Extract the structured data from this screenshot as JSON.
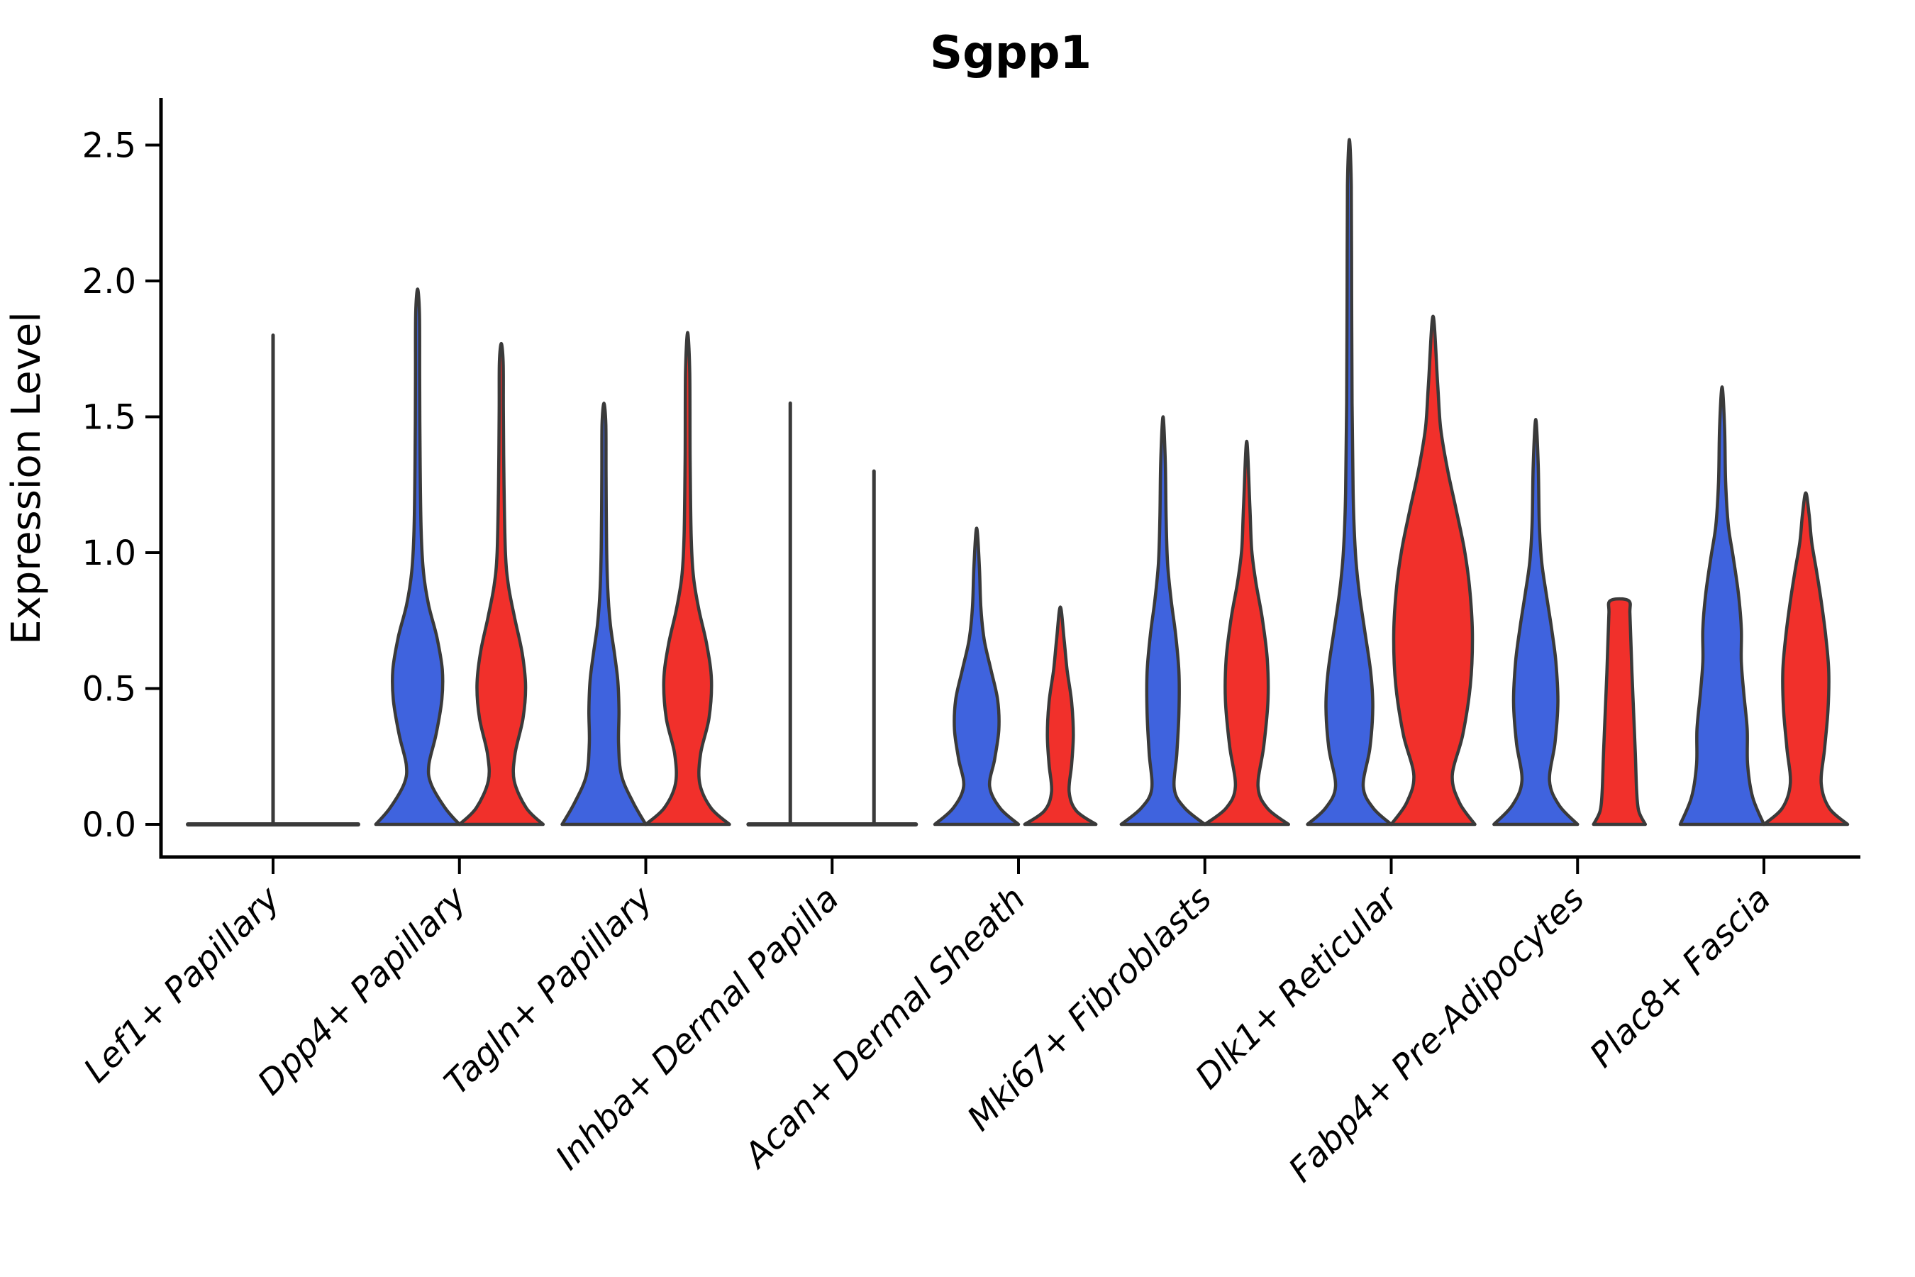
{
  "figure": {
    "title": "Sgpp1",
    "ylabel": "Expression Level"
  },
  "chart_data": {
    "type": "violin",
    "title": "Sgpp1",
    "xlabel": "",
    "ylabel": "Expression Level",
    "ytick_labels": [
      "0.0",
      "0.5",
      "1.0",
      "1.5",
      "2.0",
      "2.5"
    ],
    "ytick_values": [
      0,
      0.5,
      1,
      1.5,
      2,
      2.5
    ],
    "ylim": [
      -0.12,
      2.67
    ],
    "grid": false,
    "legend": null,
    "layout_hint": "paired violins per category: blue on left, red on right; flat-line violins with a vertical whisker spike where density collapses to zero",
    "categories": [
      "Lef1+ Papillary",
      "Dpp4+ Papillary",
      "Tagln+ Papillary",
      "Inhba+ Dermal Papilla",
      "Acan+ Dermal Sheath",
      "Mki67+ Fibroblasts",
      "Dlk1+ Reticular",
      "Fabp4+ Pre-Adipocytes",
      "Plac8+ Fascia"
    ],
    "palette": {
      "blue": "#3F63DE",
      "red": "#F1302B",
      "neutral": "#3A3A3A",
      "outline": "#3A3A3A",
      "axis": "#000000",
      "background": "#FFFFFF"
    },
    "violins": [
      {
        "category": "Lef1+ Papillary",
        "side": "center",
        "color": "neutral",
        "shape": "flat_spike",
        "max": 1.8
      },
      {
        "category": "Dpp4+ Papillary",
        "side": "left",
        "color": "blue",
        "shape": "bulge",
        "max": 1.97,
        "profile": [
          [
            0,
            1.0
          ],
          [
            0.06,
            0.66
          ],
          [
            0.15,
            0.32
          ],
          [
            0.22,
            0.27
          ],
          [
            0.33,
            0.44
          ],
          [
            0.46,
            0.58
          ],
          [
            0.57,
            0.59
          ],
          [
            0.69,
            0.46
          ],
          [
            0.81,
            0.26
          ],
          [
            0.93,
            0.14
          ],
          [
            1.08,
            0.085
          ],
          [
            1.35,
            0.06
          ],
          [
            1.65,
            0.05
          ],
          [
            1.88,
            0.045
          ],
          [
            1.97,
            0
          ]
        ]
      },
      {
        "category": "Dpp4+ Papillary",
        "side": "right",
        "color": "red",
        "shape": "bulge",
        "max": 1.77,
        "profile": [
          [
            0,
            1.0
          ],
          [
            0.06,
            0.6
          ],
          [
            0.16,
            0.31
          ],
          [
            0.26,
            0.33
          ],
          [
            0.39,
            0.52
          ],
          [
            0.51,
            0.58
          ],
          [
            0.63,
            0.5
          ],
          [
            0.76,
            0.32
          ],
          [
            0.88,
            0.17
          ],
          [
            1.0,
            0.1
          ],
          [
            1.25,
            0.065
          ],
          [
            1.52,
            0.05
          ],
          [
            1.7,
            0.045
          ],
          [
            1.77,
            0
          ]
        ]
      },
      {
        "category": "Tagln+ Papillary",
        "side": "left",
        "color": "blue",
        "shape": "bulge",
        "max": 1.55,
        "profile": [
          [
            0,
            1.0
          ],
          [
            0.08,
            0.7
          ],
          [
            0.18,
            0.42
          ],
          [
            0.3,
            0.35
          ],
          [
            0.42,
            0.36
          ],
          [
            0.53,
            0.33
          ],
          [
            0.63,
            0.25
          ],
          [
            0.74,
            0.15
          ],
          [
            0.87,
            0.09
          ],
          [
            1.02,
            0.065
          ],
          [
            1.28,
            0.05
          ],
          [
            1.47,
            0.045
          ],
          [
            1.55,
            0
          ]
        ]
      },
      {
        "category": "Tagln+ Papillary",
        "side": "right",
        "color": "red",
        "shape": "bulge",
        "max": 1.81,
        "profile": [
          [
            0,
            1.0
          ],
          [
            0.06,
            0.56
          ],
          [
            0.15,
            0.29
          ],
          [
            0.26,
            0.31
          ],
          [
            0.39,
            0.51
          ],
          [
            0.53,
            0.57
          ],
          [
            0.66,
            0.46
          ],
          [
            0.79,
            0.27
          ],
          [
            0.91,
            0.14
          ],
          [
            1.06,
            0.085
          ],
          [
            1.35,
            0.06
          ],
          [
            1.66,
            0.05
          ],
          [
            1.81,
            0
          ]
        ]
      },
      {
        "category": "Inhba+ Dermal Papilla",
        "side": "left",
        "color": "blue",
        "shape": "flat_spike",
        "max": 1.55
      },
      {
        "category": "Inhba+ Dermal Papilla",
        "side": "right",
        "color": "red",
        "shape": "flat_spike",
        "max": 1.3
      },
      {
        "category": "Acan+ Dermal Sheath",
        "side": "left",
        "color": "blue",
        "shape": "bulge",
        "max": 1.09,
        "profile": [
          [
            0,
            1.0
          ],
          [
            0.06,
            0.56
          ],
          [
            0.14,
            0.31
          ],
          [
            0.24,
            0.43
          ],
          [
            0.35,
            0.53
          ],
          [
            0.46,
            0.5
          ],
          [
            0.57,
            0.34
          ],
          [
            0.68,
            0.18
          ],
          [
            0.8,
            0.1
          ],
          [
            0.95,
            0.065
          ],
          [
            1.09,
            0
          ]
        ]
      },
      {
        "category": "Acan+ Dermal Sheath",
        "side": "right",
        "color": "red",
        "shape": "bulge",
        "max": 0.8,
        "profile": [
          [
            0,
            0.85
          ],
          [
            0.05,
            0.38
          ],
          [
            0.12,
            0.21
          ],
          [
            0.22,
            0.27
          ],
          [
            0.33,
            0.31
          ],
          [
            0.45,
            0.27
          ],
          [
            0.57,
            0.16
          ],
          [
            0.68,
            0.09
          ],
          [
            0.8,
            0
          ]
        ]
      },
      {
        "category": "Mki67+ Fibroblasts",
        "side": "left",
        "color": "blue",
        "shape": "bulge",
        "max": 1.5,
        "profile": [
          [
            0,
            1.0
          ],
          [
            0.06,
            0.52
          ],
          [
            0.13,
            0.27
          ],
          [
            0.26,
            0.33
          ],
          [
            0.41,
            0.38
          ],
          [
            0.56,
            0.38
          ],
          [
            0.7,
            0.3
          ],
          [
            0.83,
            0.19
          ],
          [
            0.96,
            0.11
          ],
          [
            1.12,
            0.075
          ],
          [
            1.33,
            0.055
          ],
          [
            1.5,
            0
          ]
        ]
      },
      {
        "category": "Mki67+ Fibroblasts",
        "side": "right",
        "color": "red",
        "shape": "bulge",
        "max": 1.41,
        "profile": [
          [
            0,
            1.0
          ],
          [
            0.06,
            0.49
          ],
          [
            0.14,
            0.27
          ],
          [
            0.29,
            0.41
          ],
          [
            0.46,
            0.51
          ],
          [
            0.61,
            0.49
          ],
          [
            0.76,
            0.37
          ],
          [
            0.89,
            0.22
          ],
          [
            1.01,
            0.12
          ],
          [
            1.17,
            0.075
          ],
          [
            1.41,
            0
          ]
        ]
      },
      {
        "category": "Dlk1+ Reticular",
        "side": "left",
        "color": "blue",
        "shape": "bulge",
        "max": 2.52,
        "profile": [
          [
            0,
            1.0
          ],
          [
            0.06,
            0.57
          ],
          [
            0.14,
            0.33
          ],
          [
            0.28,
            0.49
          ],
          [
            0.43,
            0.56
          ],
          [
            0.56,
            0.51
          ],
          [
            0.71,
            0.37
          ],
          [
            0.86,
            0.23
          ],
          [
            1.01,
            0.14
          ],
          [
            1.22,
            0.09
          ],
          [
            1.55,
            0.065
          ],
          [
            1.95,
            0.055
          ],
          [
            2.35,
            0.045
          ],
          [
            2.52,
            0
          ]
        ]
      },
      {
        "category": "Dlk1+ Reticular",
        "side": "right",
        "color": "red",
        "shape": "bulge",
        "max": 1.87,
        "profile": [
          [
            0,
            1.0
          ],
          [
            0.08,
            0.63
          ],
          [
            0.18,
            0.46
          ],
          [
            0.33,
            0.71
          ],
          [
            0.51,
            0.89
          ],
          [
            0.69,
            0.94
          ],
          [
            0.86,
            0.88
          ],
          [
            1.01,
            0.75
          ],
          [
            1.16,
            0.55
          ],
          [
            1.31,
            0.34
          ],
          [
            1.46,
            0.18
          ],
          [
            1.62,
            0.11
          ],
          [
            1.87,
            0
          ]
        ]
      },
      {
        "category": "Fabp4+ Pre-Adipocytes",
        "side": "left",
        "color": "blue",
        "shape": "bulge",
        "max": 1.49,
        "profile": [
          [
            0,
            1.0
          ],
          [
            0.07,
            0.56
          ],
          [
            0.16,
            0.33
          ],
          [
            0.3,
            0.46
          ],
          [
            0.45,
            0.53
          ],
          [
            0.6,
            0.48
          ],
          [
            0.73,
            0.37
          ],
          [
            0.85,
            0.25
          ],
          [
            0.97,
            0.14
          ],
          [
            1.11,
            0.085
          ],
          [
            1.32,
            0.06
          ],
          [
            1.49,
            0
          ]
        ]
      },
      {
        "category": "Fabp4+ Pre-Adipocytes",
        "side": "right",
        "color": "red",
        "shape": "column",
        "max": 0.83,
        "profile": [
          [
            0,
            0.62
          ],
          [
            0.05,
            0.46
          ],
          [
            0.13,
            0.41
          ],
          [
            0.26,
            0.38
          ],
          [
            0.41,
            0.34
          ],
          [
            0.56,
            0.3
          ],
          [
            0.69,
            0.27
          ],
          [
            0.78,
            0.25
          ],
          [
            0.82,
            0.24
          ],
          [
            0.83,
            0
          ]
        ]
      },
      {
        "category": "Plac8+ Fascia",
        "side": "left",
        "color": "blue",
        "shape": "bulge",
        "max": 1.61,
        "profile": [
          [
            0,
            1.0
          ],
          [
            0.1,
            0.73
          ],
          [
            0.22,
            0.61
          ],
          [
            0.35,
            0.6
          ],
          [
            0.48,
            0.52
          ],
          [
            0.6,
            0.46
          ],
          [
            0.72,
            0.46
          ],
          [
            0.85,
            0.39
          ],
          [
            0.98,
            0.27
          ],
          [
            1.1,
            0.15
          ],
          [
            1.26,
            0.085
          ],
          [
            1.46,
            0.06
          ],
          [
            1.61,
            0
          ]
        ]
      },
      {
        "category": "Plac8+ Fascia",
        "side": "right",
        "color": "red",
        "shape": "bulge",
        "max": 1.22,
        "profile": [
          [
            0,
            1.0
          ],
          [
            0.06,
            0.56
          ],
          [
            0.15,
            0.37
          ],
          [
            0.28,
            0.45
          ],
          [
            0.42,
            0.53
          ],
          [
            0.56,
            0.55
          ],
          [
            0.69,
            0.48
          ],
          [
            0.81,
            0.38
          ],
          [
            0.93,
            0.26
          ],
          [
            1.04,
            0.14
          ],
          [
            1.14,
            0.08
          ],
          [
            1.22,
            0
          ]
        ]
      }
    ]
  }
}
